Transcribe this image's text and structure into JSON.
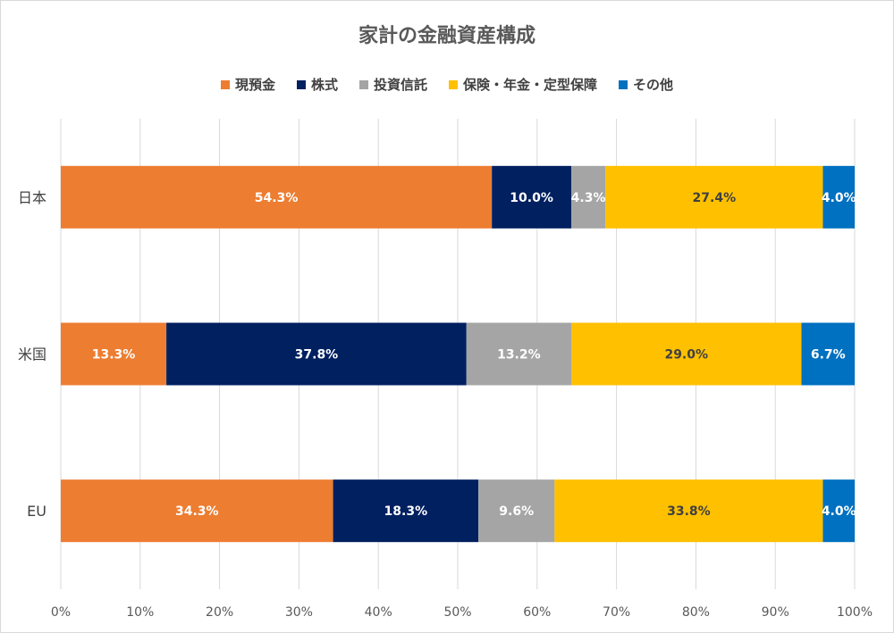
{
  "chart_data": {
    "type": "bar",
    "orientation": "horizontal",
    "stacked": true,
    "title": "家計の金融資産構成",
    "categories": [
      "日本",
      "米国",
      "EU"
    ],
    "series": [
      {
        "name": "現預金",
        "color": "#ED7D31",
        "label_color": "#ffffff",
        "values": [
          54.3,
          13.3,
          34.3
        ],
        "labels": [
          "54.3%",
          "13.3%",
          "34.3%"
        ]
      },
      {
        "name": "株式",
        "color": "#002060",
        "label_color": "#ffffff",
        "values": [
          10.0,
          37.8,
          18.3
        ],
        "labels": [
          "10.0%",
          "37.8%",
          "18.3%"
        ]
      },
      {
        "name": "投資信託",
        "color": "#A5A5A5",
        "label_color": "#ffffff",
        "values": [
          4.3,
          13.2,
          9.6
        ],
        "labels": [
          "4.3%",
          "13.2%",
          "9.6%"
        ]
      },
      {
        "name": "保険・年金・定型保障",
        "color": "#FFC000",
        "label_color": "#404040",
        "values": [
          27.4,
          29.0,
          33.8
        ],
        "labels": [
          "27.4%",
          "29.0%",
          "33.8%"
        ]
      },
      {
        "name": "その他",
        "color": "#0070C0",
        "label_color": "#ffffff",
        "values": [
          4.0,
          6.7,
          4.0
        ],
        "labels": [
          "4.0%",
          "6.7%",
          "4.0%"
        ]
      }
    ],
    "x_ticks": [
      "0%",
      "10%",
      "20%",
      "30%",
      "40%",
      "50%",
      "60%",
      "70%",
      "80%",
      "90%",
      "100%"
    ],
    "xlim": [
      0,
      100
    ],
    "grid": true,
    "legend_position": "top"
  }
}
